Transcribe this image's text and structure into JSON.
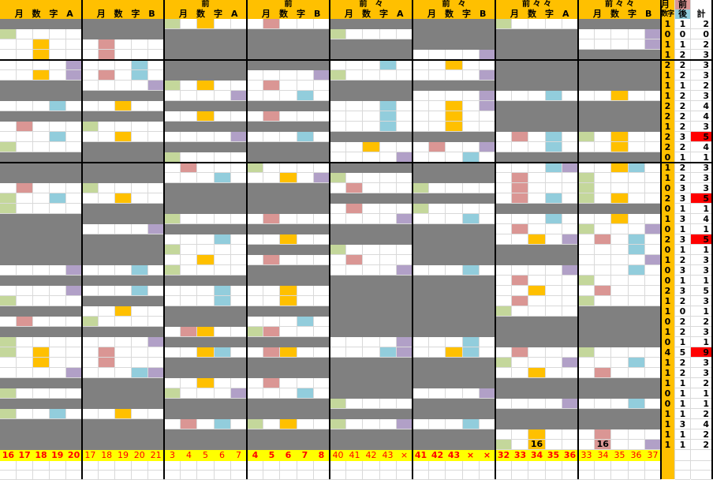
{
  "colors": {
    "gray": "#808080",
    "orange": "#FFC000",
    "pink": "#DA9694",
    "blue": "#92CDDC",
    "purple": "#B1A0C7",
    "green": "#C4D79B",
    "yellow": "#FFFF00",
    "red": "#FF0000"
  },
  "groups": [
    {
      "top": "",
      "labels": [
        "月",
        "数",
        "字",
        "A"
      ],
      "footer": [
        "16",
        "17",
        "18",
        "19",
        "20"
      ],
      "footer_bold": true,
      "grid": [
        "g",
        "l....",
        "..o..",
        "..o..",
        "....v",
        "..o.v",
        "g",
        "g",
        "...b.",
        "g",
        ".p...",
        "...b.",
        "l....",
        "g",
        "g",
        "g",
        ".p...",
        "l..b.",
        "l....",
        "g",
        "g",
        "g",
        "g",
        "g",
        "....v",
        "g",
        "....v",
        "l....",
        "g",
        ".p...",
        "g",
        "l....",
        "l.o..",
        "..o..",
        "....v",
        "g",
        "l....",
        "g",
        "l..b.",
        "g",
        "g",
        "g"
      ]
    },
    {
      "top": "",
      "labels": [
        "月",
        "数",
        "字",
        "B"
      ],
      "footer": [
        "17",
        "18",
        "19",
        "20",
        "21"
      ],
      "footer_bold": false,
      "grid": [
        "g",
        "g",
        ".p...",
        ".p...",
        "...b.",
        ".p.b.",
        "....v",
        "g",
        "..o..",
        "g",
        "l....",
        "..o..",
        "g",
        "g",
        "g",
        "g",
        "l....",
        "..o..",
        "g",
        "g",
        "....v",
        "g",
        "g",
        "g",
        "...b.",
        "g",
        "...b.",
        "g",
        "..o..",
        "l....",
        "g",
        "....v",
        ".p...",
        ".p...",
        "...bv",
        "g",
        "g",
        "g",
        "..o..",
        "g",
        "g",
        "g"
      ]
    },
    {
      "top": "前",
      "labels": [
        "月",
        "数",
        "字",
        "A"
      ],
      "footer": [
        "3",
        "4",
        "5",
        "6",
        "7"
      ],
      "footer_bold": false,
      "grid": [
        "l.o..",
        "g",
        "g",
        "g",
        "g",
        "g",
        "l.o..",
        "....v",
        "g",
        "..o..",
        "g",
        "....v",
        "g",
        "l....",
        ".p...",
        "...b.",
        "g",
        "g",
        "g",
        "l....",
        "g",
        "...b.",
        "l....",
        "..o..",
        "l....",
        "g",
        "...b.",
        "...b.",
        "g",
        "g",
        ".po..",
        "g",
        "..ob.",
        "g",
        "g",
        "..o..",
        "l...v",
        "g",
        "g",
        ".p.b.",
        "g",
        "g"
      ]
    },
    {
      "top": "前",
      "labels": [
        "月",
        "数",
        "字",
        "B"
      ],
      "footer": [
        "4",
        "5",
        "6",
        "7",
        "8"
      ],
      "footer_bold": true,
      "grid": [
        ".p...",
        "g",
        "g",
        "g",
        "g",
        "....v",
        ".p...",
        "...b.",
        "g",
        ".p...",
        "g",
        "...b.",
        "g",
        "g",
        "l....",
        "..o.v",
        "g",
        "g",
        "g",
        ".p...",
        "g",
        "..o..",
        "g",
        ".p...",
        "g",
        "g",
        "..o..",
        "..o..",
        "g",
        "...b.",
        "lp...",
        "g",
        ".po..",
        "g",
        "g",
        ".p...",
        "...b.",
        "g",
        "g",
        "l.o..",
        "g",
        "g"
      ]
    },
    {
      "top": "前　々",
      "labels": [
        "月",
        "数",
        "字",
        "A"
      ],
      "footer": [
        "40",
        "41",
        "42",
        "43",
        "×"
      ],
      "footer_bold": false,
      "grid": [
        "g",
        "l....",
        "g",
        "g",
        "...b.",
        "l....",
        "g",
        "g",
        "...b.",
        "...b.",
        "...b.",
        "g",
        "..o..",
        "....v",
        "g",
        "l....",
        ".p...",
        "g",
        ".p...",
        "....v",
        "g",
        "g",
        "l....",
        ".p...",
        "....v",
        "g",
        "g",
        "g",
        "g",
        "g",
        "g",
        "....v",
        "...bv",
        "g",
        "g",
        "g",
        "g",
        "l....",
        "g",
        "l...v",
        "g",
        "g"
      ]
    },
    {
      "top": "前　々",
      "labels": [
        "月",
        "数",
        "字",
        "B"
      ],
      "footer": [
        "41",
        "42",
        "43",
        "×",
        "×"
      ],
      "footer_bold": true,
      "grid": [
        "g",
        "g",
        "g",
        "....v",
        "..o..",
        "....v",
        "g",
        "....v",
        "..o.v",
        "..o..",
        "..o..",
        "g",
        ".p..v",
        "...b.",
        "g",
        "g",
        "l....",
        "g",
        "l....",
        "...b.",
        "g",
        "g",
        "g",
        "g",
        "...b.",
        "g",
        "g",
        "g",
        "g",
        "g",
        "g",
        "...b.",
        "..ob.",
        "g",
        "g",
        "g",
        "....v",
        "g",
        "g",
        "...b.",
        "g",
        "g"
      ]
    },
    {
      "top": "前 々 々",
      "labels": [
        "月",
        "数",
        "字",
        "A"
      ],
      "footer": [
        "32",
        "33",
        "34",
        "35",
        "36"
      ],
      "footer_bold": true,
      "grid": [
        "l....",
        "g",
        "g",
        "g",
        "g",
        "g",
        "g",
        "...b.",
        "g",
        "g",
        "g",
        ".p.b.",
        "...b.",
        "g",
        "...bv",
        ".p...",
        ".p...",
        ".p.b.",
        "g",
        "...b.",
        ".p...",
        "..o.v",
        "g",
        "g",
        "....v",
        ".p...",
        "..o..",
        ".p...",
        "l....",
        "g",
        "g",
        "g",
        ".p...",
        "l...v",
        "..o..",
        "g",
        "g",
        "....v",
        "g",
        "g",
        "..o..",
        "l.o.."
      ],
      "marker": {
        "row": 41,
        "col": 2,
        "text": "16"
      }
    },
    {
      "top": "前 々 々",
      "labels": [
        "月",
        "数",
        "字",
        "B"
      ],
      "footer": [
        "33",
        "34",
        "35",
        "36",
        "37"
      ],
      "footer_bold": false,
      "grid": [
        "g",
        "....v",
        "....v",
        "g",
        "g",
        "g",
        "g",
        "..o..",
        "g",
        "g",
        "g",
        "l.o..",
        "..o..",
        "g",
        "..ob.",
        "l....",
        "l....",
        "l.o..",
        "g",
        "..o..",
        "l...v",
        ".p.b.",
        "...b.",
        "....v",
        "...b.",
        "l....",
        ".p...",
        "l....",
        "g",
        "g",
        "g",
        "g",
        "l....",
        "...b.",
        ".p...",
        "g",
        "g",
        "...b.",
        "g",
        "g",
        ".p...",
        ".p..v"
      ],
      "marker": {
        "row": 41,
        "col": 1,
        "text": "16"
      }
    }
  ],
  "summary": {
    "header": {
      "month_digit_1": "月",
      "month_digit_2": "数字",
      "prev": "前",
      "next": "後",
      "total": "計"
    },
    "rows": [
      [
        "1",
        "1",
        "2"
      ],
      [
        "0",
        "0",
        "0"
      ],
      [
        "1",
        "1",
        "2"
      ],
      [
        "1",
        "2",
        "3"
      ],
      [
        "2",
        "2",
        "3"
      ],
      [
        "1",
        "2",
        "3"
      ],
      [
        "1",
        "1",
        "2"
      ],
      [
        "1",
        "2",
        "3"
      ],
      [
        "2",
        "2",
        "4"
      ],
      [
        "2",
        "2",
        "4"
      ],
      [
        "1",
        "2",
        "3"
      ],
      [
        "2",
        "3",
        "5"
      ],
      [
        "2",
        "2",
        "4"
      ],
      [
        "0",
        "1",
        "1"
      ],
      [
        "1",
        "2",
        "3"
      ],
      [
        "1",
        "2",
        "3"
      ],
      [
        "0",
        "3",
        "3"
      ],
      [
        "2",
        "3",
        "5"
      ],
      [
        "0",
        "1",
        "1"
      ],
      [
        "1",
        "3",
        "4"
      ],
      [
        "0",
        "1",
        "1"
      ],
      [
        "2",
        "3",
        "5"
      ],
      [
        "0",
        "1",
        "1"
      ],
      [
        "1",
        "2",
        "3"
      ],
      [
        "0",
        "3",
        "3"
      ],
      [
        "0",
        "1",
        "1"
      ],
      [
        "2",
        "3",
        "5"
      ],
      [
        "1",
        "2",
        "3"
      ],
      [
        "1",
        "0",
        "1"
      ],
      [
        "0",
        "2",
        "2"
      ],
      [
        "1",
        "2",
        "3"
      ],
      [
        "0",
        "1",
        "1"
      ],
      [
        "4",
        "5",
        "9"
      ],
      [
        "1",
        "2",
        "3"
      ],
      [
        "1",
        "2",
        "3"
      ],
      [
        "1",
        "1",
        "2"
      ],
      [
        "0",
        "1",
        "1"
      ],
      [
        "0",
        "1",
        "1"
      ],
      [
        "1",
        "1",
        "2"
      ],
      [
        "1",
        "3",
        "4"
      ],
      [
        "1",
        "1",
        "2"
      ],
      [
        "1",
        "1",
        "2"
      ]
    ],
    "highlight_rows": [
      11,
      17,
      21,
      32
    ]
  }
}
